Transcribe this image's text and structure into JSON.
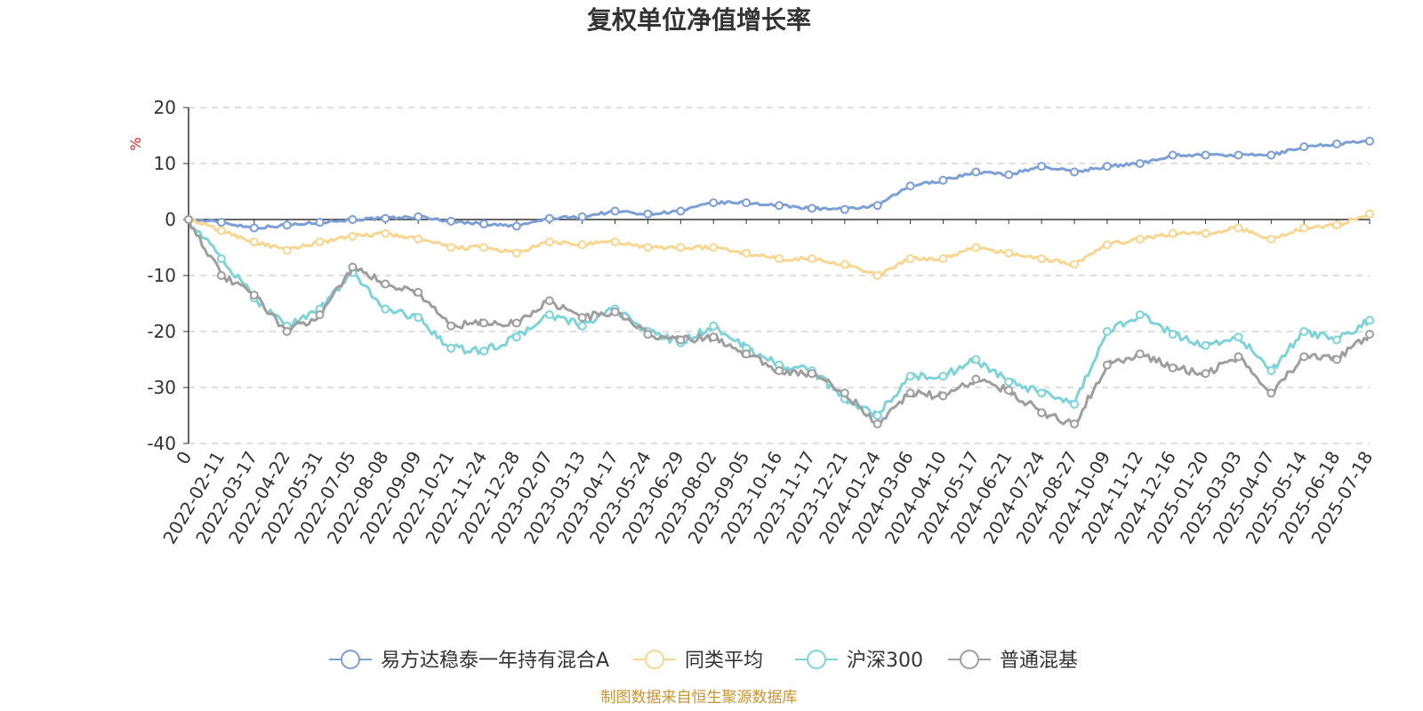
{
  "chart_data": {
    "type": "line",
    "title": "复权单位净值增长率",
    "ylabel": "%",
    "ylim": [
      -40,
      20
    ],
    "yticks": [
      20,
      10,
      0,
      -10,
      -20,
      -30,
      -40
    ],
    "grid": true,
    "legend_position": "bottom-center",
    "source_note": "制图数据来自恒生聚源数据库",
    "x": [
      "0",
      "2022-02-11",
      "2022-03-17",
      "2022-04-22",
      "2022-05-31",
      "2022-07-05",
      "2022-08-08",
      "2022-09-09",
      "2022-10-21",
      "2022-11-24",
      "2022-12-28",
      "2023-02-07",
      "2023-03-13",
      "2023-04-17",
      "2023-05-24",
      "2023-06-29",
      "2023-08-02",
      "2023-09-05",
      "2023-10-16",
      "2023-11-17",
      "2023-12-21",
      "2024-01-24",
      "2024-03-06",
      "2024-04-10",
      "2024-05-17",
      "2024-06-21",
      "2024-07-24",
      "2024-08-27",
      "2024-10-09",
      "2024-11-12",
      "2024-12-16",
      "2025-01-20",
      "2025-03-03",
      "2025-04-07",
      "2025-05-14",
      "2025-06-18",
      "2025-07-18"
    ],
    "series": [
      {
        "name": "易方达稳泰一年持有混合A",
        "color": "#7b9fd6",
        "values": [
          0,
          -0.5,
          -1.5,
          -1.0,
          -0.5,
          0,
          0.2,
          0.5,
          -0.3,
          -0.8,
          -1.2,
          0.2,
          0.5,
          1.5,
          1.0,
          1.5,
          3.0,
          3.0,
          2.5,
          2.0,
          1.8,
          2.5,
          6.0,
          7.0,
          8.5,
          8.0,
          9.5,
          8.5,
          9.5,
          10.0,
          11.5,
          11.5,
          11.5,
          11.5,
          13.0,
          13.5,
          14.0
        ]
      },
      {
        "name": "同类平均",
        "color": "#f9d68f",
        "values": [
          0,
          -2.0,
          -4.0,
          -5.5,
          -4.0,
          -3.0,
          -2.5,
          -3.5,
          -5.0,
          -5.0,
          -6.0,
          -4.0,
          -4.5,
          -4.0,
          -5.0,
          -5.0,
          -5.0,
          -6.0,
          -7.0,
          -7.0,
          -8.0,
          -10.0,
          -7.0,
          -7.0,
          -5.0,
          -6.0,
          -7.0,
          -8.0,
          -4.5,
          -3.5,
          -2.5,
          -2.5,
          -1.5,
          -3.5,
          -1.5,
          -1.0,
          1.0
        ]
      },
      {
        "name": "沪深300",
        "color": "#7dd3d8",
        "values": [
          0,
          -7.0,
          -14.0,
          -19.0,
          -16.0,
          -9.5,
          -16.0,
          -17.5,
          -23.0,
          -23.5,
          -21.0,
          -17.0,
          -19.0,
          -16.0,
          -20.0,
          -22.0,
          -19.0,
          -23.0,
          -26.0,
          -27.0,
          -32.0,
          -35.0,
          -28.0,
          -28.0,
          -25.0,
          -29.0,
          -31.0,
          -33.0,
          -20.0,
          -17.0,
          -20.5,
          -22.5,
          -21.0,
          -27.0,
          -20.0,
          -21.5,
          -18.0
        ]
      },
      {
        "name": "普通混基",
        "color": "#9e9e9e",
        "values": [
          0,
          -10.0,
          -13.5,
          -20.0,
          -17.0,
          -8.5,
          -11.5,
          -13.0,
          -19.0,
          -18.5,
          -18.5,
          -14.5,
          -17.5,
          -16.5,
          -20.5,
          -21.5,
          -21.0,
          -24.0,
          -27.0,
          -27.5,
          -31.0,
          -36.5,
          -31.0,
          -31.5,
          -28.5,
          -30.5,
          -34.5,
          -36.5,
          -26.0,
          -24.0,
          -26.5,
          -27.5,
          -24.5,
          -31.0,
          -24.5,
          -25.0,
          -20.5
        ]
      }
    ]
  }
}
